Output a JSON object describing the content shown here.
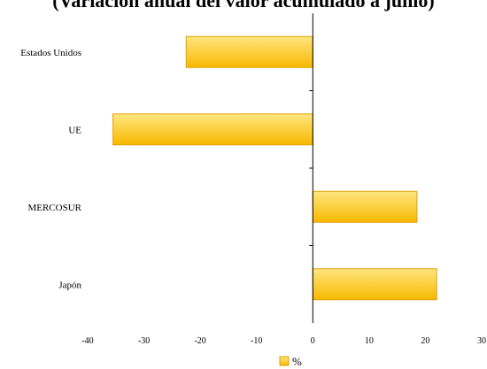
{
  "chart_data": {
    "type": "bar",
    "orientation": "horizontal",
    "title": "(Variación anual del valor acumulado a junio)",
    "categories": [
      "Estados Unidos",
      "UE",
      "MERCOSUR",
      "Japón"
    ],
    "series": [
      {
        "name": "%",
        "values": [
          -22.5,
          -35.5,
          18.5,
          22.0
        ],
        "color": "#ffcc33"
      }
    ],
    "xlim": [
      -40,
      30
    ],
    "xticks": [
      -40,
      -30,
      -20,
      -10,
      0,
      10,
      20,
      30
    ],
    "grid": false,
    "legend": "bottom-center",
    "colors": {
      "bar_top": "#ffe680",
      "bar_bottom": "#f7b900",
      "bar_stroke": "#e0a000",
      "axis": "#000000"
    }
  }
}
